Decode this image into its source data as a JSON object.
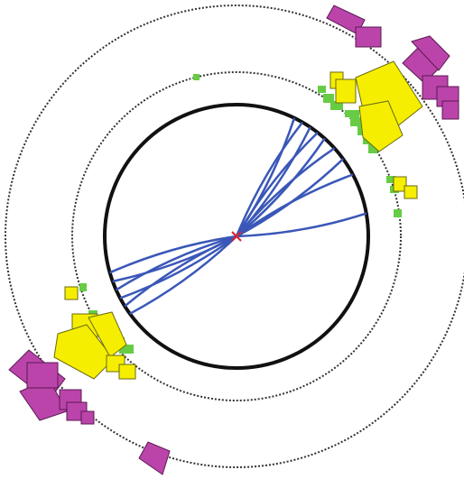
{
  "colors": {
    "background": "#ffffff",
    "tracker_boundary": "#111111",
    "detector_rings": "#333333",
    "tracks": "#3a57b8",
    "vertex": "#e0202a",
    "ecal_hits": "#66cc44",
    "hcal_towers": "#f5ee00",
    "muon_towers": "#bb44aa",
    "tower_outline": "#6a6a10"
  },
  "icons": {
    "vertex": "x-marker-icon"
  },
  "tracks": [
    {
      "angle_deg": -64,
      "length_ratio": 1.0
    },
    {
      "angle_deg": -60,
      "length_ratio": 1.0
    },
    {
      "angle_deg": -56,
      "length_ratio": 1.0
    },
    {
      "angle_deg": -52,
      "length_ratio": 1.0
    },
    {
      "angle_deg": -48,
      "length_ratio": 1.0
    },
    {
      "angle_deg": -42,
      "length_ratio": 1.0
    },
    {
      "angle_deg": -36,
      "length_ratio": 1.0
    },
    {
      "angle_deg": -28,
      "length_ratio": 1.0
    },
    {
      "angle_deg": -10,
      "length_ratio": 1.0
    },
    {
      "angle_deg": 144,
      "length_ratio": 1.0
    },
    {
      "angle_deg": 148,
      "length_ratio": 1.0
    },
    {
      "angle_deg": 152,
      "length_ratio": 1.0
    },
    {
      "angle_deg": 156,
      "length_ratio": 1.0
    },
    {
      "angle_deg": 160,
      "length_ratio": 1.0
    },
    {
      "angle_deg": 164,
      "length_ratio": 1.0
    }
  ]
}
